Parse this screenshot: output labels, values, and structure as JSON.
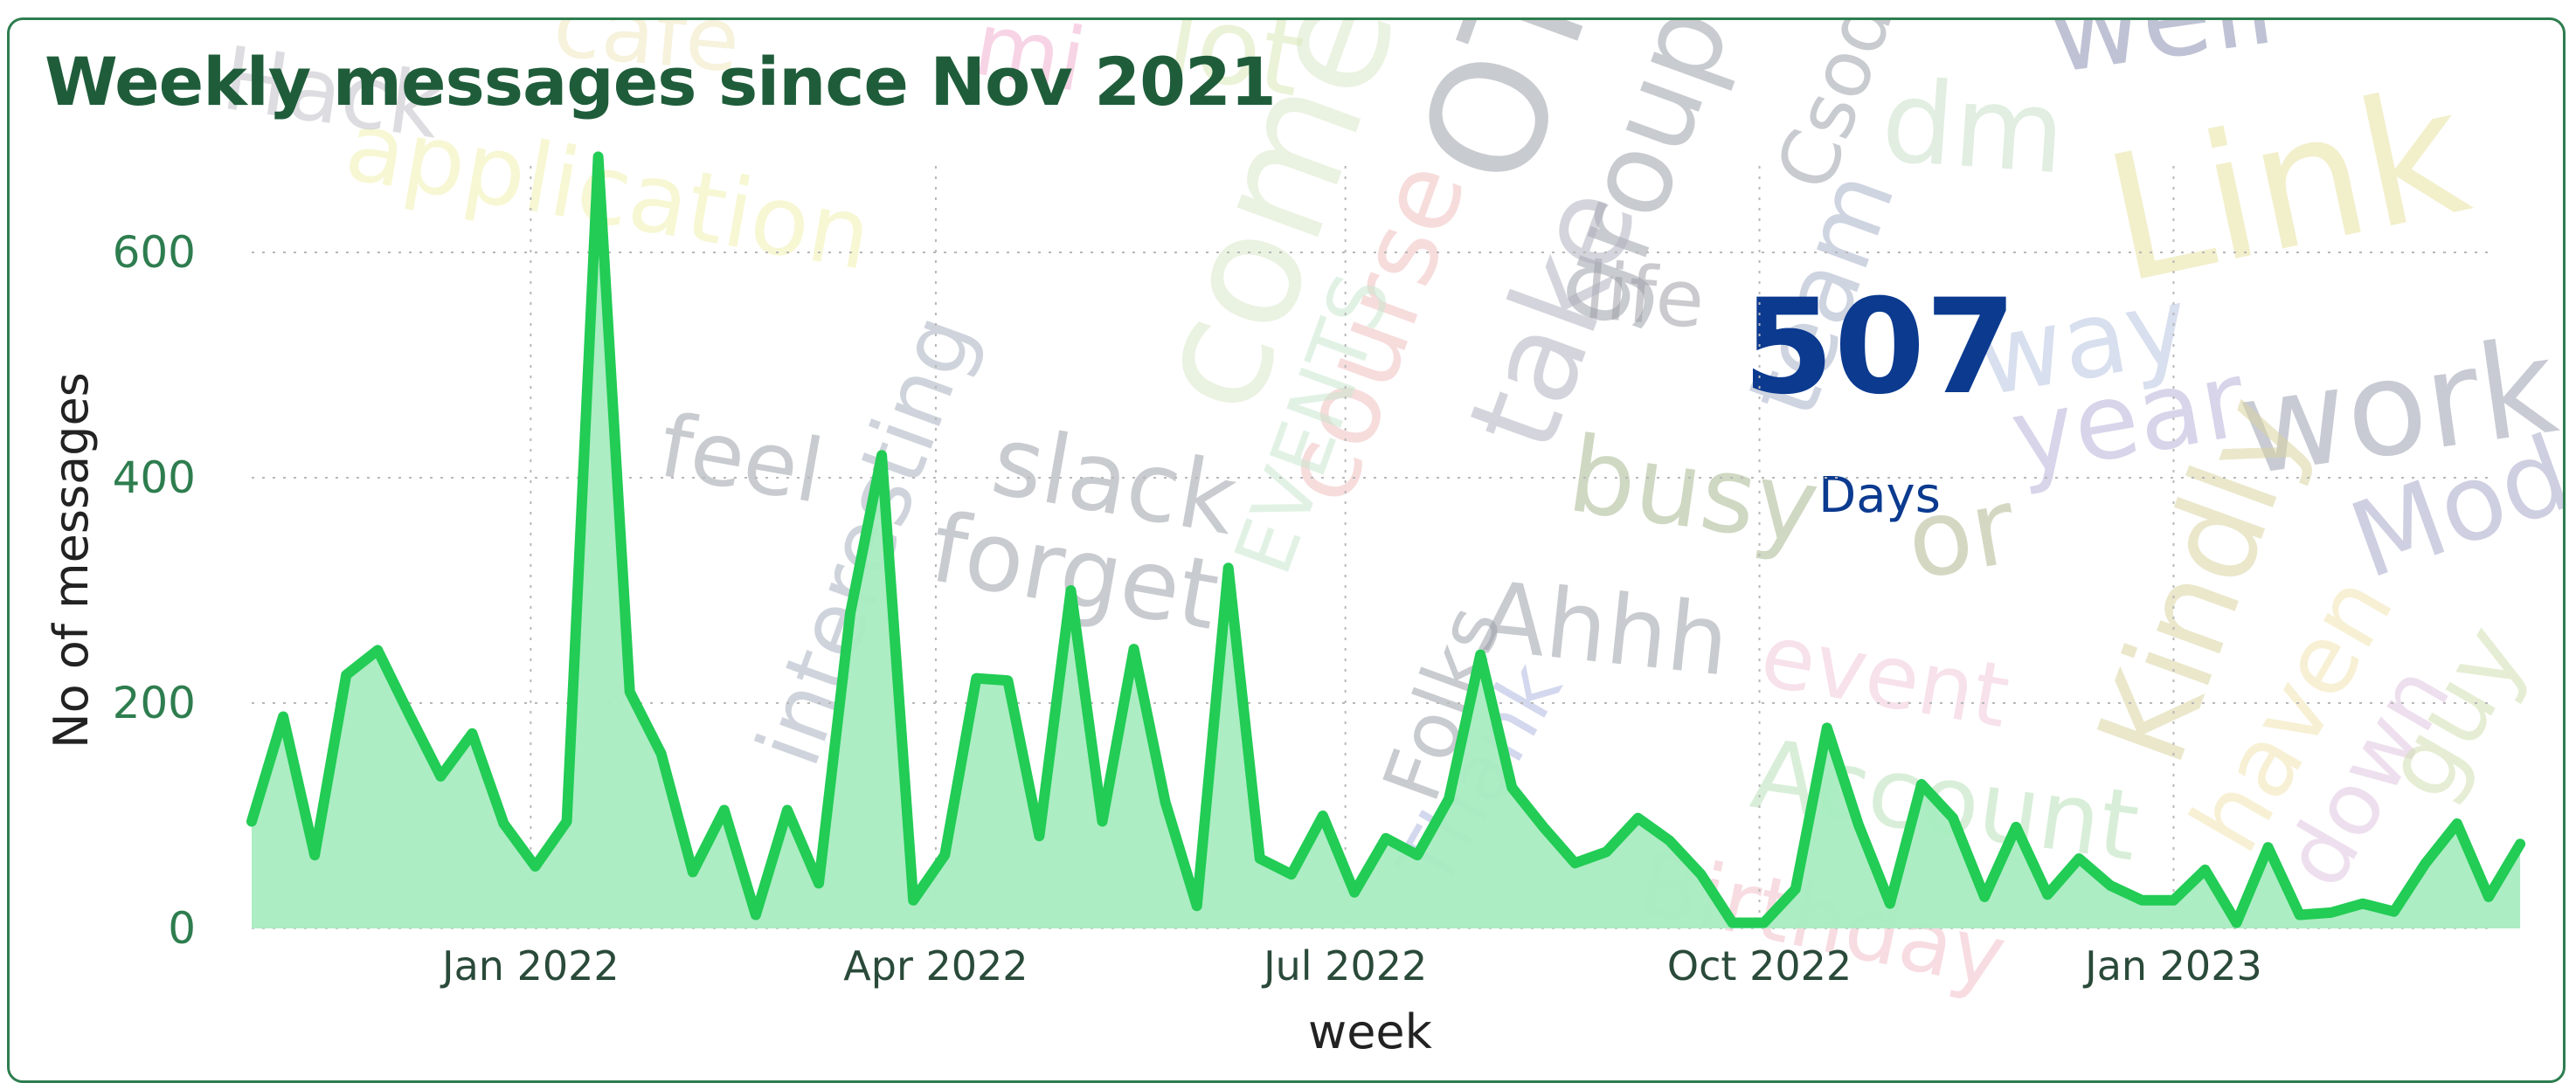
{
  "title": "Weekly messages since Nov 2021",
  "kpi": {
    "value": "507",
    "label": "Days"
  },
  "colors": {
    "line": "#22cc55",
    "area": "#a8ecc0",
    "title": "#1f5d3a",
    "ticks": "#2e7d4f",
    "kpi": "#0b3a8f",
    "border": "#2e7d4f"
  },
  "wordcloud": [
    "well",
    "Link",
    "work",
    "Mod",
    "way",
    "year",
    "Kindly",
    "haven",
    "down",
    "guy",
    "Account",
    "Birthday",
    "event",
    "Ahhh",
    "Folks",
    "Thank",
    "busy",
    "or",
    "life",
    "team",
    "dm",
    "Csod",
    "group",
    "take",
    "course",
    "come",
    "OT",
    "EVENTS",
    "slack",
    "forget",
    "feel",
    "interesting",
    "application",
    "Hack",
    "lot",
    "mi",
    "cafe"
  ],
  "chart_data": {
    "type": "area",
    "title": "Weekly messages since Nov 2021",
    "xlabel": "week",
    "ylabel": "No of messages",
    "x_start": "2021-10-31",
    "x_step_days": 7,
    "xlim": [
      "2021-10-31",
      "2023-03-12"
    ],
    "ylim": [
      0,
      700
    ],
    "yticks": [
      0,
      200,
      400,
      600
    ],
    "xticks": [
      "Jan 2022",
      "Apr 2022",
      "Jul 2022",
      "Oct 2022",
      "Jan 2023"
    ],
    "xtick_dates": [
      "2022-01-01",
      "2022-04-01",
      "2022-07-01",
      "2022-10-01",
      "2023-01-01"
    ],
    "grid": true,
    "series": [
      {
        "values": [
          95,
          188,
          65,
          225,
          247,
          190,
          135,
          173,
          93,
          55,
          95,
          685,
          210,
          155,
          50,
          105,
          12,
          105,
          40,
          280,
          420,
          25,
          65,
          222,
          220,
          82,
          300,
          95,
          248,
          112,
          20,
          320,
          62,
          48,
          100,
          32,
          80,
          65,
          115,
          243,
          125,
          90,
          58,
          68,
          98,
          78,
          48,
          5,
          5,
          35,
          178,
          92,
          22,
          128,
          98,
          28,
          90,
          30,
          62,
          38,
          25,
          25,
          52,
          5,
          72,
          12,
          14,
          22,
          15,
          58,
          93,
          28,
          75
        ]
      }
    ]
  }
}
